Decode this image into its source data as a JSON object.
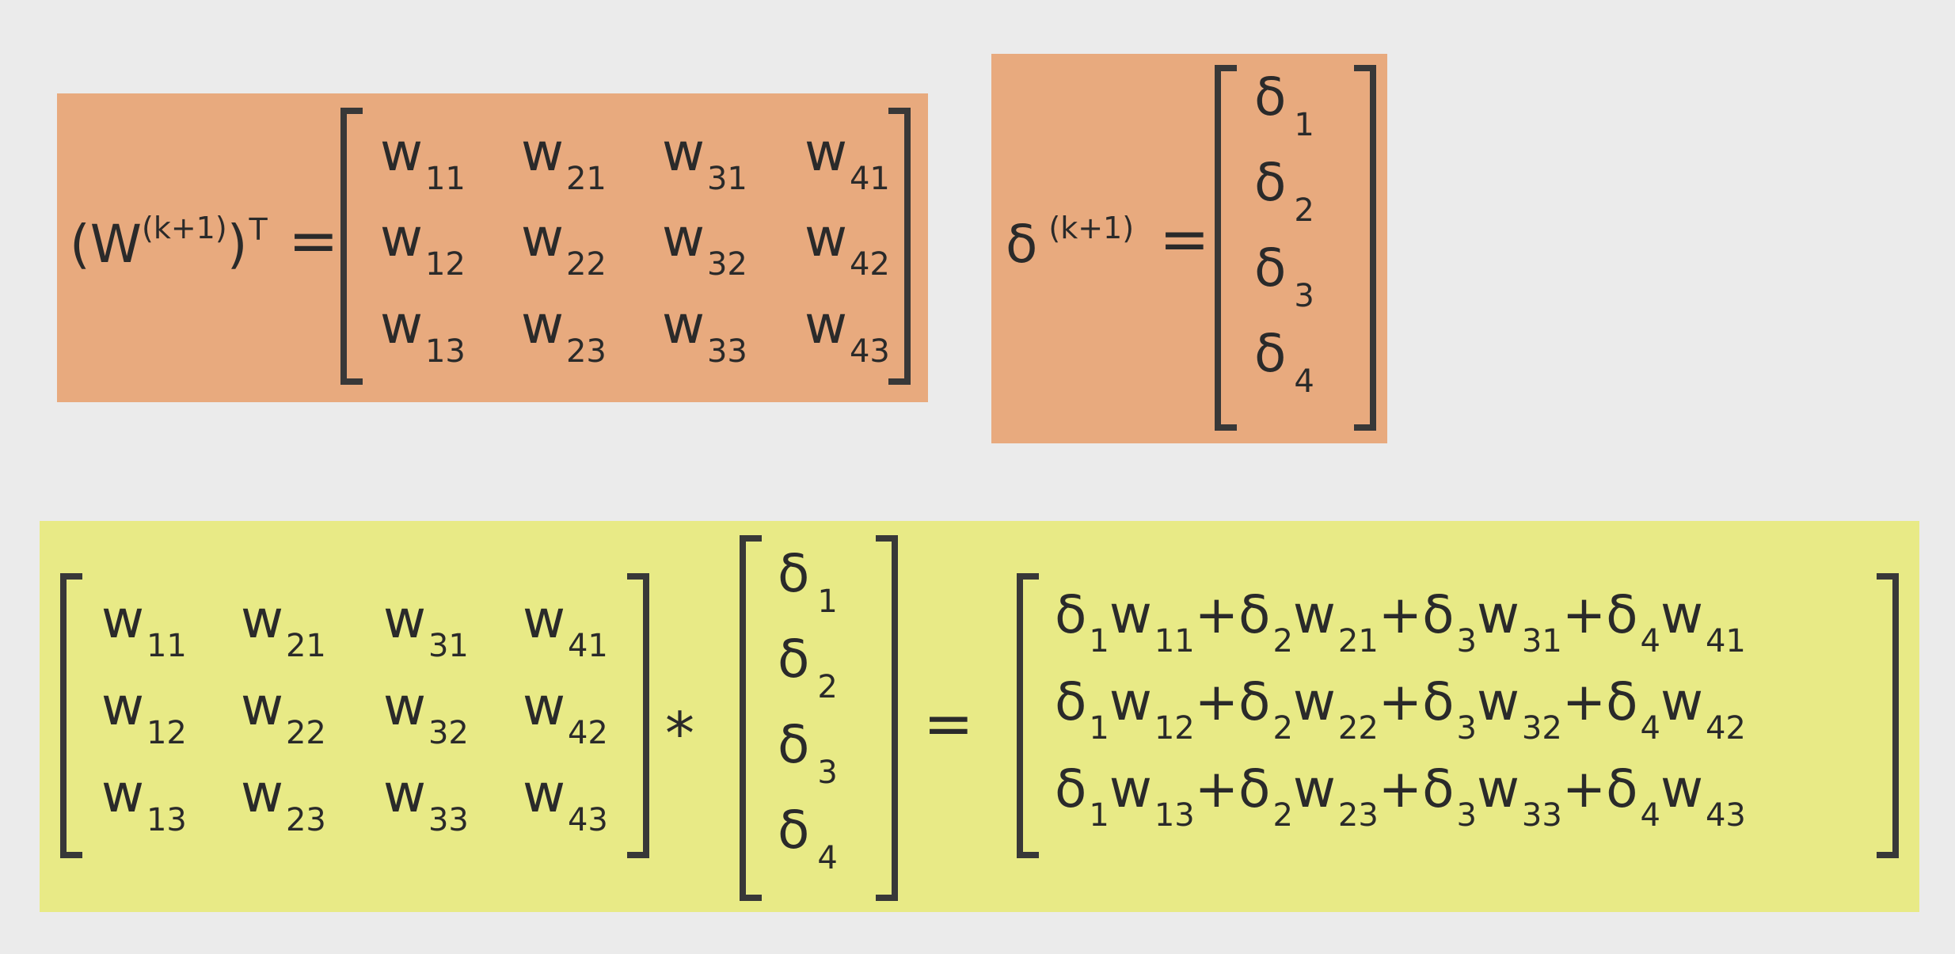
{
  "colors": {
    "background": "#ebebeb",
    "orange_panel": "#e8aa7e",
    "yellow_panel": "#e8ea86",
    "ink": "#2a2a2a"
  },
  "transpose": {
    "label": {
      "open": "(W",
      "sup": "(k+1)",
      "close": ")",
      "t": "T"
    },
    "equals": "=",
    "rows": [
      [
        {
          "b": "w",
          "s": "11"
        },
        {
          "b": "w",
          "s": "21"
        },
        {
          "b": "w",
          "s": "31"
        },
        {
          "b": "w",
          "s": "41"
        }
      ],
      [
        {
          "b": "w",
          "s": "12"
        },
        {
          "b": "w",
          "s": "22"
        },
        {
          "b": "w",
          "s": "32"
        },
        {
          "b": "w",
          "s": "42"
        }
      ],
      [
        {
          "b": "w",
          "s": "13"
        },
        {
          "b": "w",
          "s": "23"
        },
        {
          "b": "w",
          "s": "33"
        },
        {
          "b": "w",
          "s": "43"
        }
      ]
    ]
  },
  "delta_vector": {
    "label": {
      "base": "δ",
      "sup": "(k+1)"
    },
    "equals": "=",
    "rows": [
      {
        "b": "δ",
        "s": "1"
      },
      {
        "b": "δ",
        "s": "2"
      },
      {
        "b": "δ",
        "s": "3"
      },
      {
        "b": "δ",
        "s": "4"
      }
    ]
  },
  "product": {
    "operator": "*",
    "equals": "=",
    "matrix_rows": [
      [
        {
          "b": "w",
          "s": "11"
        },
        {
          "b": "w",
          "s": "21"
        },
        {
          "b": "w",
          "s": "31"
        },
        {
          "b": "w",
          "s": "41"
        }
      ],
      [
        {
          "b": "w",
          "s": "12"
        },
        {
          "b": "w",
          "s": "22"
        },
        {
          "b": "w",
          "s": "32"
        },
        {
          "b": "w",
          "s": "42"
        }
      ],
      [
        {
          "b": "w",
          "s": "13"
        },
        {
          "b": "w",
          "s": "23"
        },
        {
          "b": "w",
          "s": "33"
        },
        {
          "b": "w",
          "s": "43"
        }
      ]
    ],
    "vector_rows": [
      {
        "b": "δ",
        "s": "1"
      },
      {
        "b": "δ",
        "s": "2"
      },
      {
        "b": "δ",
        "s": "3"
      },
      {
        "b": "δ",
        "s": "4"
      }
    ],
    "plus": "+",
    "result_rows": [
      [
        {
          "d": "δ",
          "ds": "1",
          "w": "w",
          "ws": "11"
        },
        {
          "d": "δ",
          "ds": "2",
          "w": "w",
          "ws": "21"
        },
        {
          "d": "δ",
          "ds": "3",
          "w": "w",
          "ws": "31"
        },
        {
          "d": "δ",
          "ds": "4",
          "w": "w",
          "ws": "41"
        }
      ],
      [
        {
          "d": "δ",
          "ds": "1",
          "w": "w",
          "ws": "12"
        },
        {
          "d": "δ",
          "ds": "2",
          "w": "w",
          "ws": "22"
        },
        {
          "d": "δ",
          "ds": "3",
          "w": "w",
          "ws": "32"
        },
        {
          "d": "δ",
          "ds": "4",
          "w": "w",
          "ws": "42"
        }
      ],
      [
        {
          "d": "δ",
          "ds": "1",
          "w": "w",
          "ws": "13"
        },
        {
          "d": "δ",
          "ds": "2",
          "w": "w",
          "ws": "23"
        },
        {
          "d": "δ",
          "ds": "3",
          "w": "w",
          "ws": "33"
        },
        {
          "d": "δ",
          "ds": "4",
          "w": "w",
          "ws": "43"
        }
      ]
    ]
  }
}
